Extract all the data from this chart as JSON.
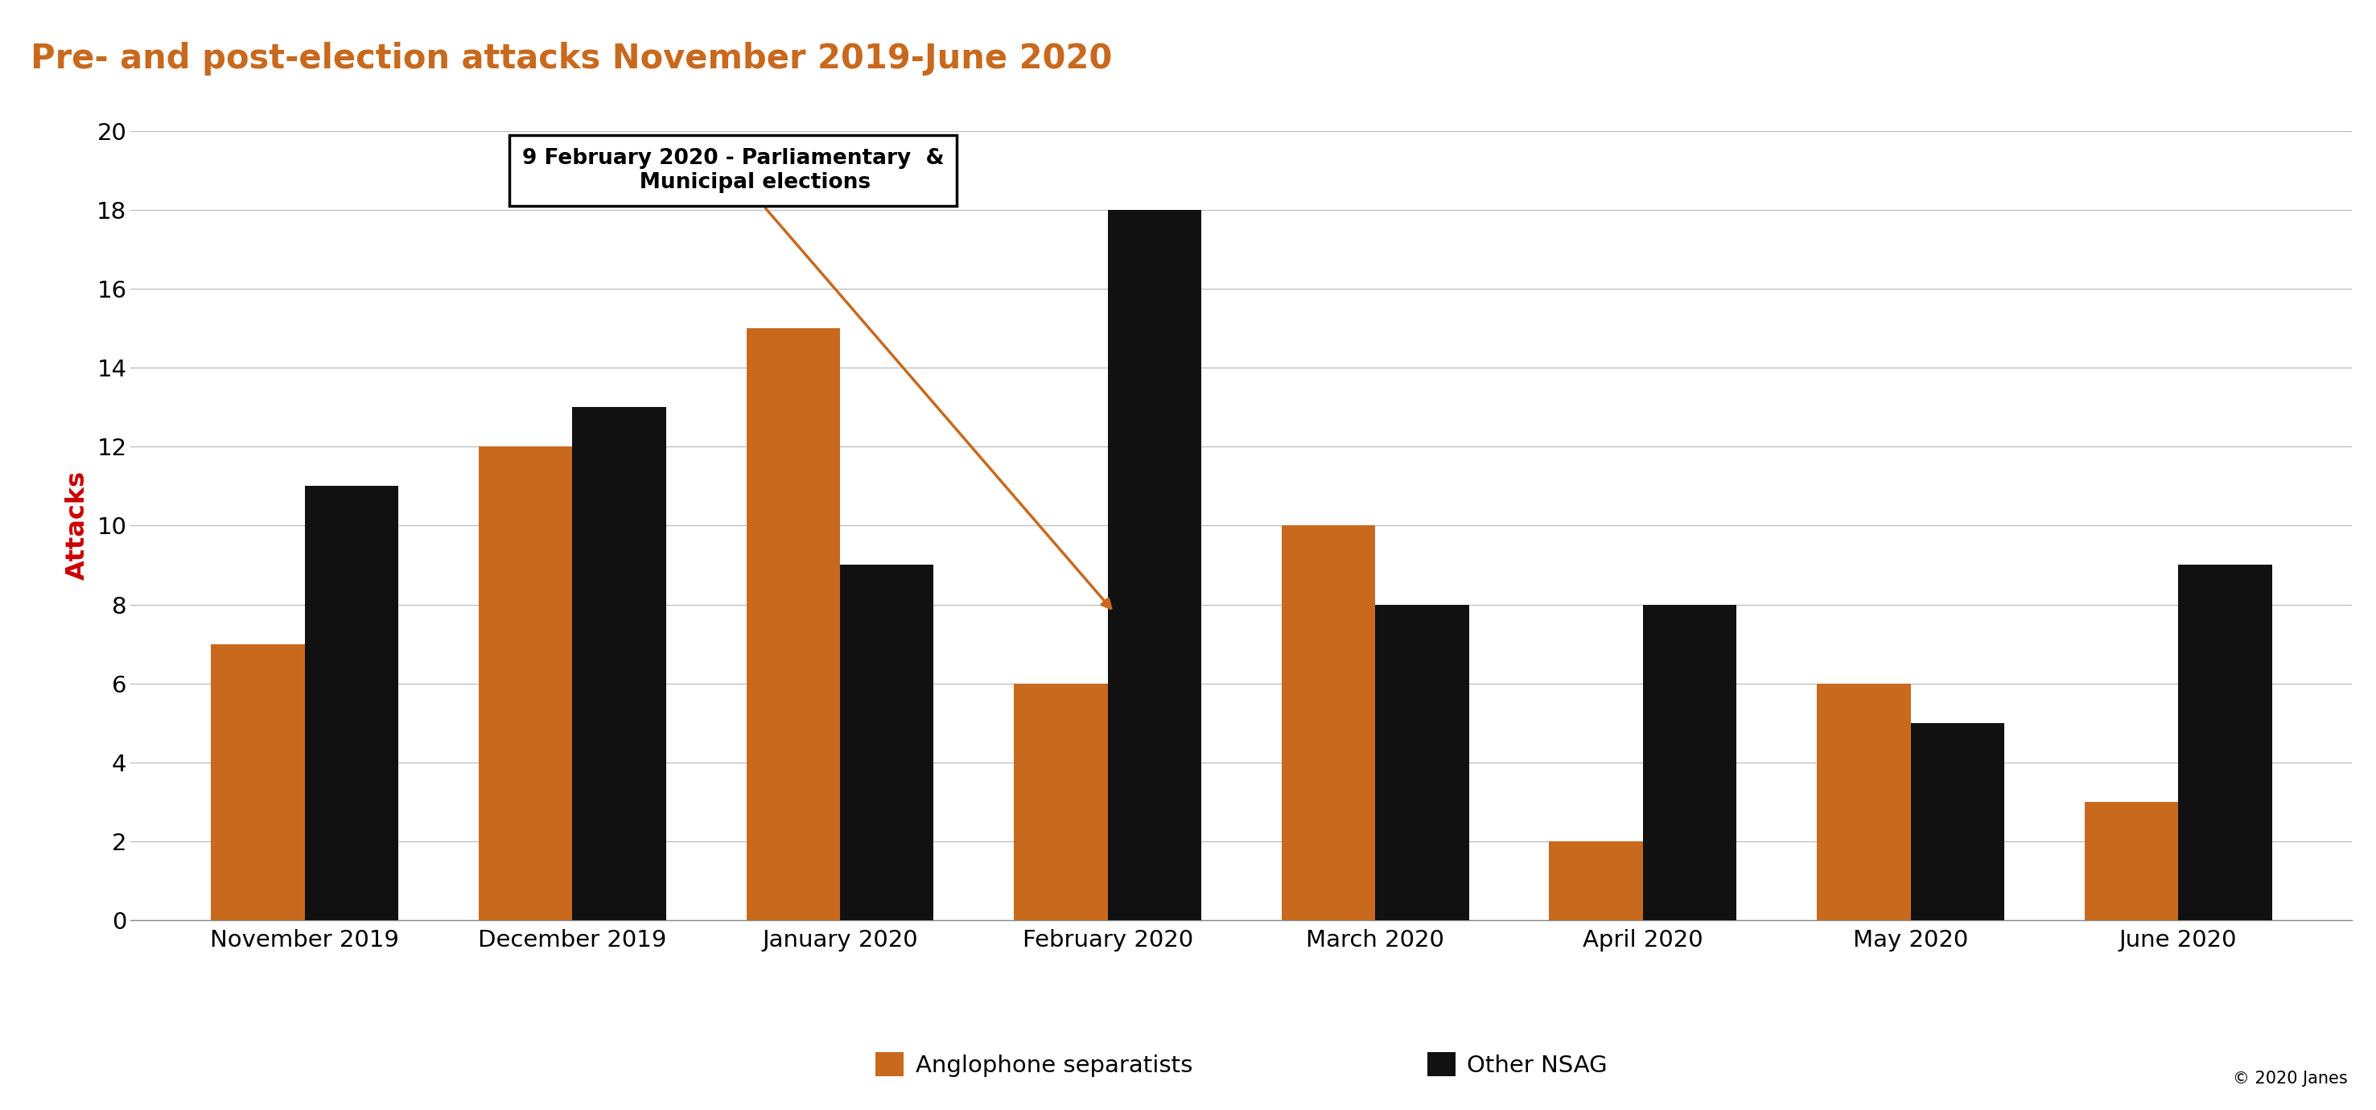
{
  "title": "Pre- and post-election attacks November 2019-June 2020",
  "title_color": "#C8691E",
  "header_bg": "#252525",
  "chart_bg": "#ffffff",
  "outer_bg": "#ffffff",
  "categories": [
    "November 2019",
    "December 2019",
    "January 2020",
    "February 2020",
    "March 2020",
    "April 2020",
    "May 2020",
    "June 2020"
  ],
  "anglophone": [
    7,
    12,
    15,
    6,
    10,
    2,
    6,
    3
  ],
  "other_nsag": [
    11,
    13,
    9,
    18,
    8,
    8,
    5,
    9
  ],
  "bar_color_anglophone": "#C8691E",
  "bar_color_other": "#111111",
  "ylabel": "Attacks",
  "ylabel_color": "#cc0000",
  "ylim": [
    0,
    20
  ],
  "yticks": [
    0,
    2,
    4,
    6,
    8,
    10,
    12,
    14,
    16,
    18,
    20
  ],
  "annotation_text": "9 February 2020 - Parliamentary  &\n      Municipal elections",
  "legend_label_1": "Anglophone separatists",
  "legend_label_2": "Other NSAG",
  "copyright": "© 2020 Janes",
  "grid_color": "#bbbbbb",
  "bar_width": 0.35
}
